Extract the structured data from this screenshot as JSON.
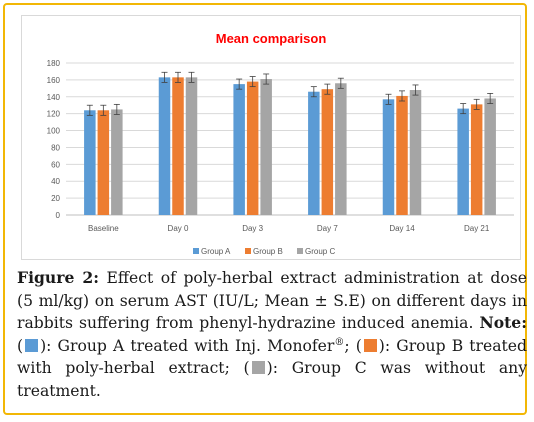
{
  "chart_data": {
    "type": "bar",
    "title": "Mean comparison",
    "categories": [
      "Baseline",
      "Day 0",
      "Day 3",
      "Day 7",
      "Day 14",
      "Day 21"
    ],
    "series": [
      {
        "name": "Group A",
        "color": "#5b9bd5",
        "values": [
          124,
          163,
          155,
          146,
          137,
          126
        ],
        "errors": [
          6,
          6,
          6,
          6,
          6,
          6
        ]
      },
      {
        "name": "Group B",
        "color": "#ed7d31",
        "values": [
          124,
          163,
          158,
          149,
          141,
          131
        ],
        "errors": [
          6,
          6,
          6,
          6,
          6,
          6
        ]
      },
      {
        "name": "Group C",
        "color": "#a5a5a5",
        "values": [
          125,
          163,
          161,
          156,
          148,
          138
        ],
        "errors": [
          6,
          6,
          6,
          6,
          6,
          6
        ]
      }
    ],
    "ylim": [
      0,
      180
    ],
    "yticks": [
      0,
      20,
      40,
      60,
      80,
      100,
      120,
      140,
      160,
      180
    ],
    "grid": true,
    "legend": "bottom",
    "title_color": "#ff0000"
  },
  "caption": {
    "figure_label": "Figure 2",
    "sep": ":",
    "text1": " Effect of poly-herbal extract administration at dose (5 ml/kg) on serum AST (IU/L; Mean ± S.E) on different days in rabbits suffering from phenyl-hydrazine induced anemia. ",
    "note_label": "Note:",
    "open_paren_a": " (",
    "text_a": "): Group A treated with Inj. Monofer",
    "reg_mark": "®",
    "semi_b": "; (",
    "text_b": "): Group B treated with poly-herbal extract; (",
    "text_c": "): Group C was without any treatment."
  }
}
